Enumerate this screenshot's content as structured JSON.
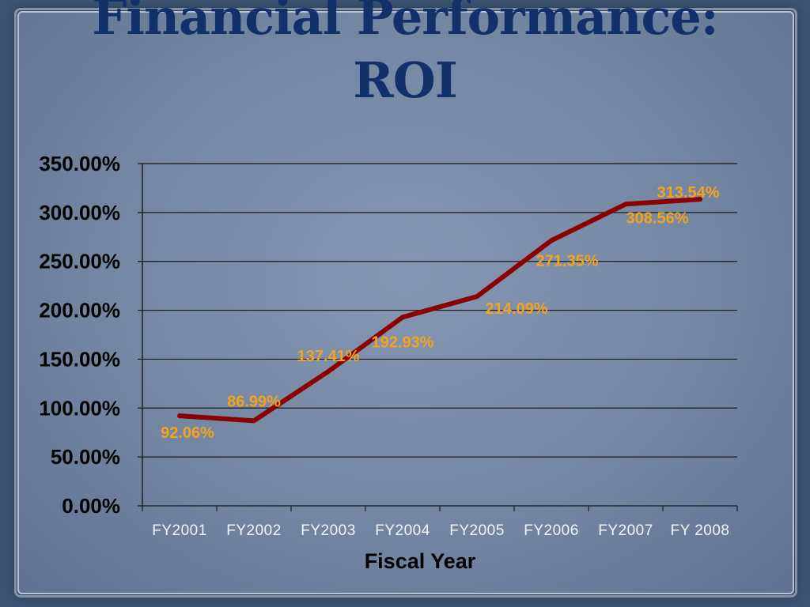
{
  "slide": {
    "title_line1": "Financial Performance:",
    "title_line2": "ROI"
  },
  "chart_data": {
    "type": "line",
    "title": "Financial Performance: ROI",
    "xlabel": "Fiscal Year",
    "ylabel": "",
    "categories": [
      "FY2001",
      "FY2002",
      "FY2003",
      "FY2004",
      "FY2005",
      "FY2006",
      "FY2007",
      "FY 2008"
    ],
    "series": [
      {
        "values": [
          92.06,
          86.99,
          137.41,
          192.93,
          214.09,
          271.35,
          308.56,
          313.54
        ],
        "labels": [
          "92.06%",
          "86.99%",
          "137.41%",
          "192.93%",
          "214.09%",
          "271.35%",
          "308.56%",
          "313.54%"
        ],
        "color": "#8b0000"
      }
    ],
    "ylim": [
      0,
      350
    ],
    "yticks": [
      0,
      50,
      100,
      150,
      200,
      250,
      300,
      350
    ],
    "ytick_labels": [
      "0.00%",
      "50.00%",
      "100.00%",
      "150.00%",
      "200.00%",
      "250.00%",
      "300.00%",
      "350.00%"
    ],
    "grid": true,
    "label_color": "#f5a21c",
    "legend": "none"
  }
}
